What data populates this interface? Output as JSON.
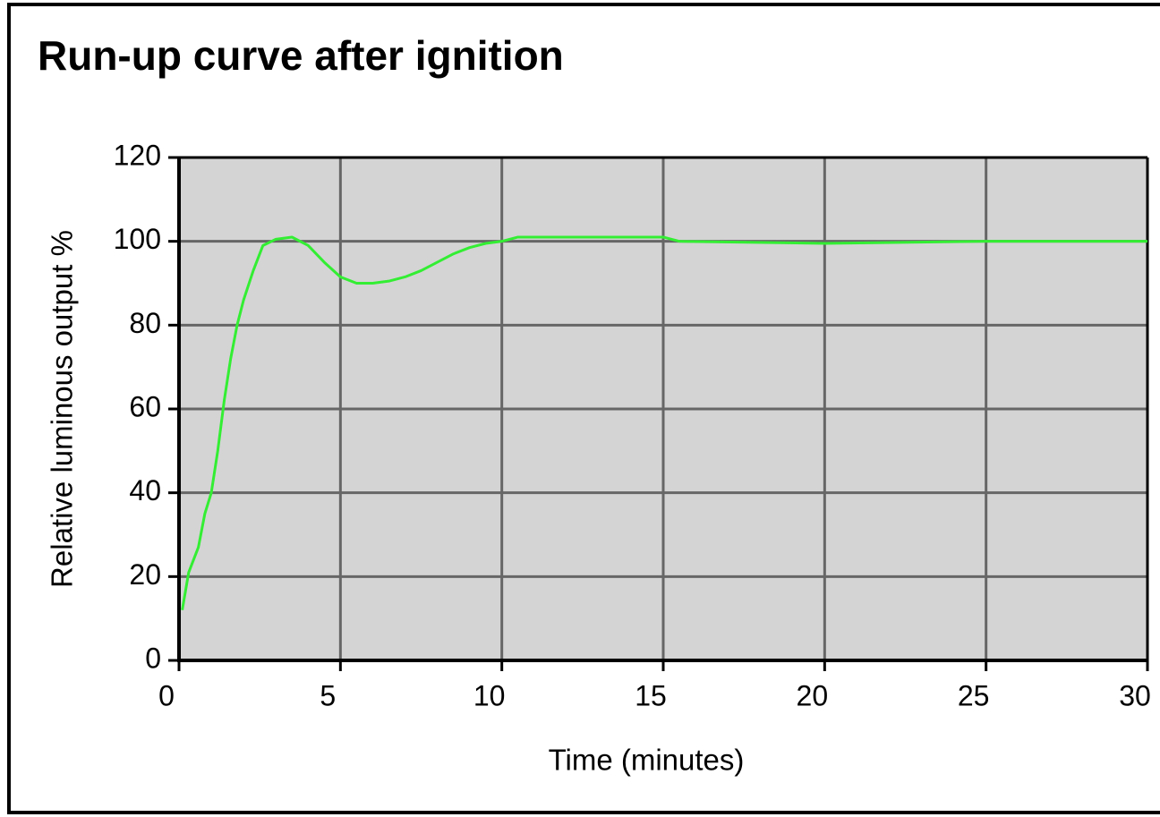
{
  "chart_data": {
    "type": "line",
    "title": "Run-up curve after ignition",
    "xlabel": "Time (minutes)",
    "ylabel": "Relative luminous output %",
    "x": [
      0.1,
      0.3,
      0.6,
      0.8,
      1.0,
      1.2,
      1.4,
      1.6,
      1.8,
      2.0,
      2.3,
      2.6,
      3.0,
      3.5,
      4.0,
      4.5,
      5.0,
      5.5,
      6.0,
      6.5,
      7.0,
      7.5,
      8.0,
      8.5,
      9.0,
      9.5,
      10.0,
      10.5,
      12.0,
      15.0,
      15.5,
      20.0,
      25.0,
      30.0
    ],
    "values": [
      12,
      21,
      27,
      35,
      40,
      50,
      62,
      72,
      80,
      86,
      93,
      99,
      100.5,
      101,
      99,
      95,
      91.5,
      90,
      90,
      90.5,
      91.5,
      93,
      95,
      97,
      98.5,
      99.5,
      100,
      101,
      101,
      101,
      100,
      99.5,
      100,
      100
    ],
    "color": "#33ee33",
    "xlim": [
      0,
      30
    ],
    "xticks": [
      0,
      5,
      10,
      15,
      20,
      25,
      30
    ],
    "ylim": [
      0,
      120
    ],
    "yticks": [
      0,
      20,
      40,
      60,
      80,
      100,
      120
    ],
    "grid": true
  }
}
